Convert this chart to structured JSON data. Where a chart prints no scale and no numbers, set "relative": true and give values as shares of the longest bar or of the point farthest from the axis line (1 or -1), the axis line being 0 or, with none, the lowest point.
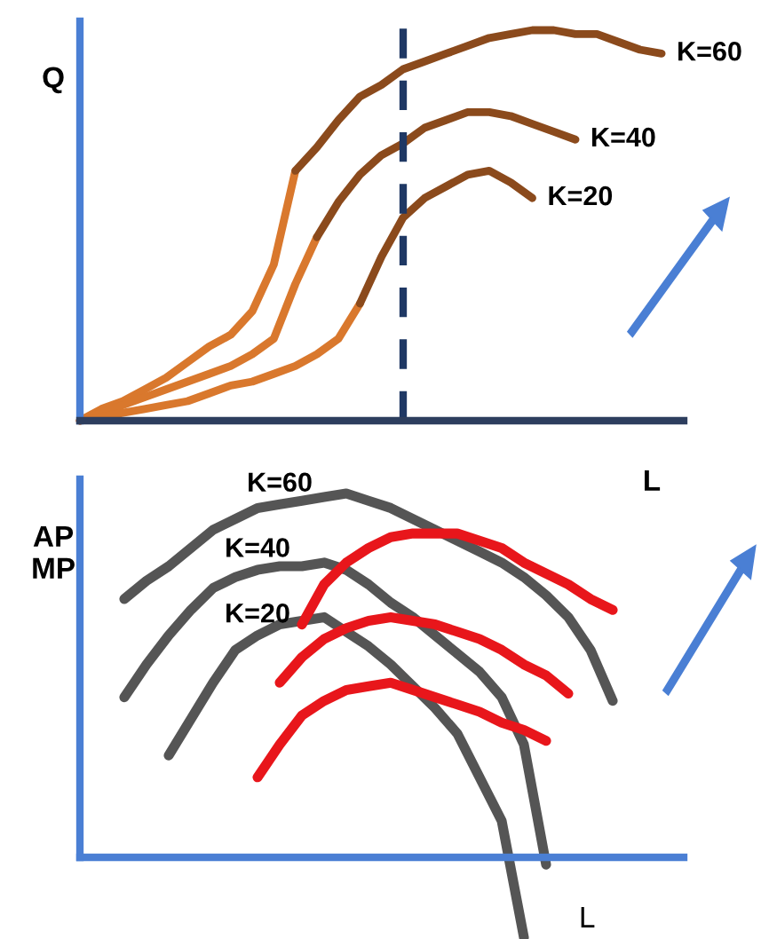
{
  "chart_data": [
    {
      "type": "line",
      "relative": true,
      "xlabel": "L",
      "ylabel": "Q",
      "categories": [
        null,
        null,
        null,
        null,
        null,
        null,
        null,
        null,
        null,
        null,
        null,
        null,
        null,
        null,
        null,
        null,
        null,
        null,
        null,
        null,
        null,
        null,
        null,
        null,
        null,
        null,
        null,
        null
      ],
      "series": [
        {
          "color": "#d9782d",
          "values": [
            0,
            0.03,
            0.05,
            0.08,
            0.11,
            0.15,
            0.19,
            0.22,
            0.28,
            0.4,
            0.64,
            null,
            null,
            null,
            null,
            null,
            null,
            null,
            null,
            null,
            null,
            null,
            null,
            null,
            null,
            null,
            null,
            null
          ]
        },
        {
          "name": "K=60",
          "color": "#8b4a1c",
          "values": [
            null,
            null,
            null,
            null,
            null,
            null,
            null,
            null,
            null,
            null,
            0.64,
            0.7,
            0.77,
            0.83,
            0.86,
            0.9,
            0.92,
            0.94,
            0.96,
            0.98,
            0.99,
            1.0,
            1.0,
            0.99,
            0.99,
            0.97,
            0.95,
            0.94
          ]
        },
        {
          "color": "#d9782d",
          "values": [
            0,
            0.02,
            0.04,
            0.06,
            0.08,
            0.1,
            0.12,
            0.14,
            0.17,
            0.21,
            0.35,
            0.47,
            null,
            null,
            null,
            null,
            null,
            null,
            null,
            null,
            null,
            null,
            null,
            null,
            null,
            null,
            null,
            null
          ]
        },
        {
          "name": "K=40",
          "color": "#8b4a1c",
          "values": [
            null,
            null,
            null,
            null,
            null,
            null,
            null,
            null,
            null,
            null,
            null,
            0.47,
            0.56,
            0.63,
            0.68,
            0.71,
            0.75,
            0.77,
            0.79,
            0.79,
            0.78,
            0.76,
            0.74,
            0.72,
            null,
            null,
            null,
            null
          ]
        },
        {
          "color": "#d9782d",
          "values": [
            0,
            0.01,
            0.02,
            0.03,
            0.04,
            0.05,
            0.07,
            0.09,
            0.1,
            0.12,
            0.14,
            0.17,
            0.21,
            0.3,
            null,
            null,
            null,
            null,
            null,
            null,
            null,
            null,
            null,
            null,
            null,
            null,
            null,
            null
          ]
        },
        {
          "name": "K=20",
          "color": "#8b4a1c",
          "values": [
            null,
            null,
            null,
            null,
            null,
            null,
            null,
            null,
            null,
            null,
            null,
            null,
            null,
            0.3,
            0.42,
            0.52,
            0.57,
            0.6,
            0.63,
            0.64,
            0.61,
            0.57,
            null,
            null,
            null,
            null,
            null,
            null
          ]
        }
      ]
    },
    {
      "type": "line",
      "relative": true,
      "xlabel": "L",
      "ylabel": "AP\nMP",
      "ref_lines": [
        {
          "axis": "y",
          "value": 0,
          "color": "#4a7fd4"
        }
      ],
      "categories": [
        null,
        null,
        null,
        null,
        null,
        null,
        null,
        null,
        null,
        null,
        null,
        null,
        null,
        null,
        null,
        null,
        null,
        null,
        null,
        null,
        null,
        null,
        null,
        null,
        null
      ],
      "series": [
        {
          "name": "K=60",
          "color": "#555555",
          "values": [
            null,
            null,
            0.71,
            0.76,
            0.8,
            0.85,
            0.9,
            0.93,
            0.96,
            0.97,
            0.98,
            0.99,
            1.0,
            0.98,
            0.96,
            0.93,
            0.9,
            0.87,
            0.84,
            0.81,
            0.77,
            0.72,
            0.66,
            0.57,
            0.43
          ]
        },
        {
          "name": "K=40",
          "color": "#555555",
          "values": [
            null,
            null,
            0.44,
            0.53,
            0.61,
            0.68,
            0.74,
            0.77,
            0.79,
            0.8,
            0.8,
            0.81,
            0.79,
            0.75,
            0.7,
            0.66,
            0.61,
            0.56,
            0.51,
            0.44,
            0.31,
            -0.02,
            null,
            null,
            null
          ]
        },
        {
          "name": "K=20",
          "color": "#555555",
          "values": [
            null,
            null,
            null,
            null,
            0.28,
            0.38,
            0.48,
            0.57,
            0.61,
            0.64,
            0.65,
            0.66,
            0.62,
            0.58,
            0.53,
            0.47,
            0.41,
            0.34,
            0.22,
            0.1,
            -0.22,
            null,
            null,
            null,
            null
          ]
        },
        {
          "color": "#e8161b",
          "values": [
            null,
            null,
            null,
            null,
            null,
            null,
            null,
            null,
            null,
            null,
            0.64,
            0.75,
            0.81,
            0.85,
            0.88,
            0.89,
            0.89,
            0.89,
            0.87,
            0.85,
            0.81,
            0.78,
            0.75,
            0.71,
            0.68
          ]
        },
        {
          "color": "#e8161b",
          "values": [
            null,
            null,
            null,
            null,
            null,
            null,
            null,
            null,
            null,
            0.48,
            0.55,
            0.6,
            0.63,
            0.65,
            0.66,
            0.65,
            0.64,
            0.62,
            0.6,
            0.57,
            0.53,
            0.5,
            0.45,
            null,
            null
          ]
        },
        {
          "color": "#e8161b",
          "values": [
            null,
            null,
            null,
            null,
            null,
            null,
            null,
            null,
            0.22,
            0.31,
            0.39,
            0.43,
            0.46,
            0.47,
            0.48,
            0.46,
            0.44,
            0.42,
            0.4,
            0.37,
            0.35,
            0.32,
            null,
            null,
            null
          ]
        }
      ]
    }
  ]
}
